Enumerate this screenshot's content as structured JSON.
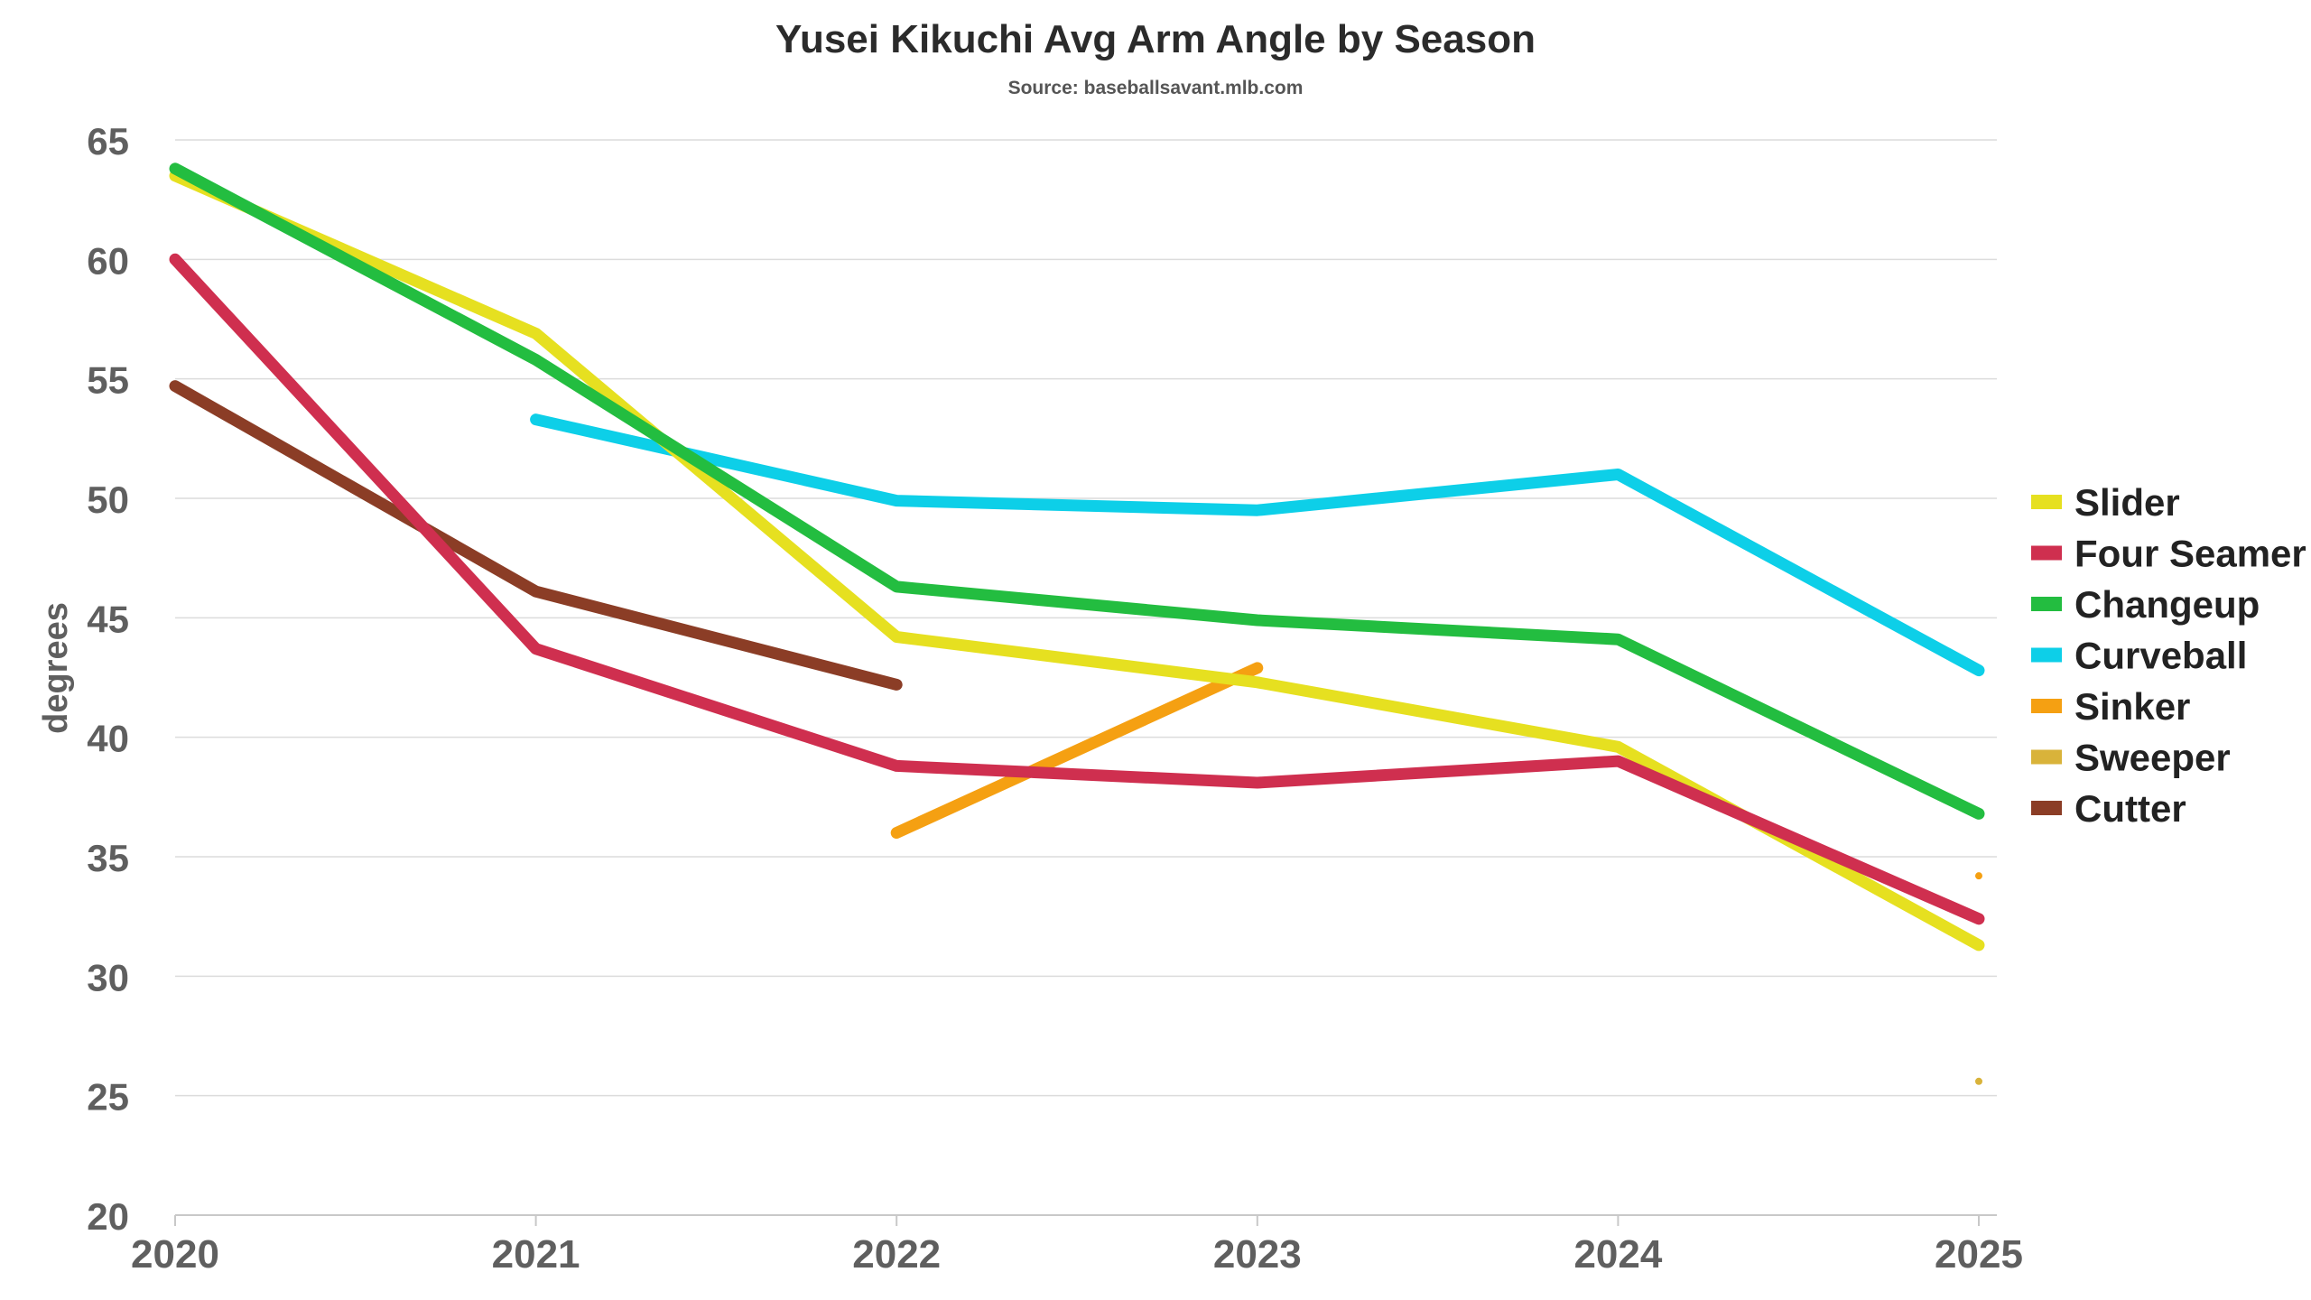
{
  "chart_data": {
    "type": "line",
    "title": "Yusei Kikuchi Avg Arm Angle by Season",
    "subtitle": "Source: baseballsavant.mlb.com",
    "xlabel": "",
    "ylabel": "degrees",
    "x": [
      2020,
      2021,
      2022,
      2023,
      2024,
      2025
    ],
    "xticks": [
      "2020",
      "2021",
      "2022",
      "2023",
      "2024",
      "2025"
    ],
    "yticks": [
      "20",
      "25",
      "30",
      "35",
      "40",
      "45",
      "50",
      "55",
      "60",
      "65"
    ],
    "ylim": [
      20,
      65
    ],
    "xlim": [
      2020,
      2025
    ],
    "grid": true,
    "legend_position": "right",
    "series": [
      {
        "name": "Slider",
        "color": "#e6e020",
        "values": [
          63.5,
          56.9,
          44.2,
          42.3,
          39.6,
          31.3
        ]
      },
      {
        "name": "Four Seamer",
        "color": "#cf2f4f",
        "values": [
          60.0,
          43.7,
          38.8,
          38.1,
          39.0,
          32.4
        ]
      },
      {
        "name": "Changeup",
        "color": "#23bd40",
        "values": [
          63.8,
          55.8,
          46.3,
          44.9,
          44.1,
          36.8
        ]
      },
      {
        "name": "Curveball",
        "color": "#0dcfe8",
        "values": [
          null,
          53.3,
          49.9,
          49.5,
          51.0,
          42.8
        ]
      },
      {
        "name": "Sinker",
        "color": "#f5a012",
        "values": [
          null,
          null,
          36.0,
          42.9,
          null,
          34.2
        ]
      },
      {
        "name": "Sweeper",
        "color": "#d9b33a",
        "values": [
          null,
          null,
          null,
          null,
          null,
          25.6
        ]
      },
      {
        "name": "Cutter",
        "color": "#8b3d26",
        "values": [
          54.7,
          46.1,
          42.2,
          null,
          null,
          null
        ]
      }
    ]
  }
}
